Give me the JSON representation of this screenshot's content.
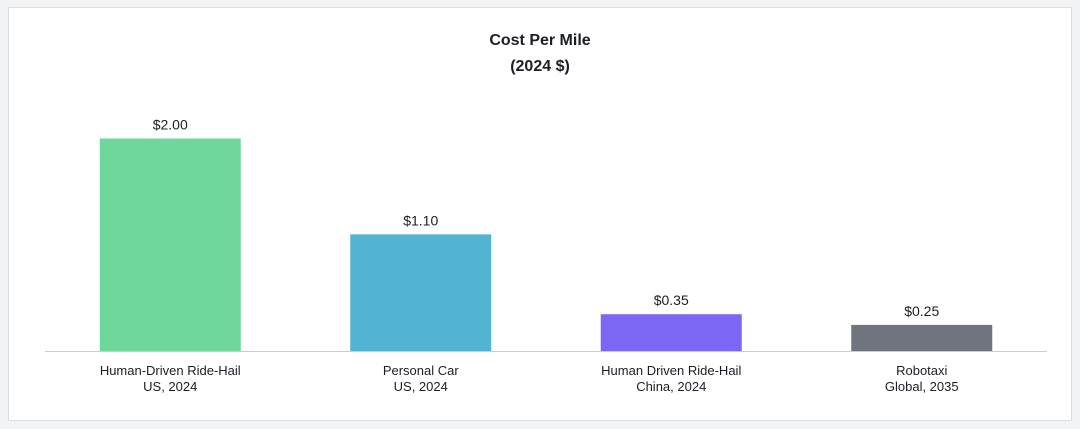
{
  "chart_data": {
    "type": "bar",
    "title": "Cost Per Mile",
    "subtitle": "(2024 $)",
    "categories": [
      [
        "Human-Driven Ride-Hail",
        "US, 2024"
      ],
      [
        "Personal Car",
        "US, 2024"
      ],
      [
        "Human Driven Ride-Hail",
        "China, 2024"
      ],
      [
        "Robotaxi",
        "Global, 2035"
      ]
    ],
    "values": [
      2.0,
      1.1,
      0.35,
      0.25
    ],
    "value_labels": [
      "$2.00",
      "$1.10",
      "$0.35",
      "$0.25"
    ],
    "colors": [
      "#6fd69c",
      "#53b4d2",
      "#7b67f4",
      "#70747f"
    ],
    "xlabel": "",
    "ylabel": "",
    "ylim": [
      0,
      2.0
    ],
    "grid": false,
    "legend": "none"
  }
}
